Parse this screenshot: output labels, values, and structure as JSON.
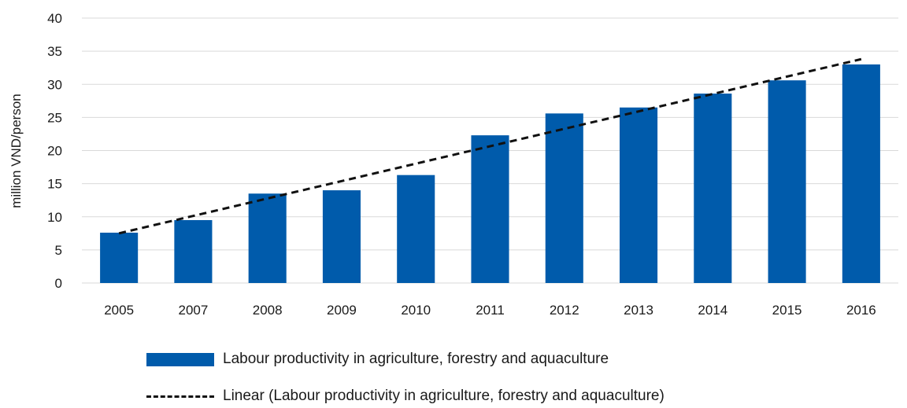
{
  "chart_data": {
    "type": "bar",
    "ylabel": "million VND/person",
    "xlabel": "",
    "ylim": [
      0,
      40
    ],
    "yticks": [
      0,
      5,
      10,
      15,
      20,
      25,
      30,
      35,
      40
    ],
    "grid": true,
    "categories": [
      "2005",
      "2007",
      "2008",
      "2009",
      "2010",
      "2011",
      "2012",
      "2013",
      "2014",
      "2015",
      "2016"
    ],
    "series": [
      {
        "name": "Labour productivity in agriculture, forestry and aquaculture",
        "values": [
          7.6,
          9.5,
          13.5,
          14.0,
          16.3,
          22.3,
          25.6,
          26.5,
          28.6,
          30.6,
          33.0
        ],
        "color": "#005bab"
      }
    ],
    "trendline": {
      "name": "Linear (Labour productivity in agriculture, forestry and aquaculture)",
      "type": "linear",
      "start": 7.5,
      "end": 33.8,
      "color": "#111111"
    },
    "legend_position": "bottom"
  }
}
